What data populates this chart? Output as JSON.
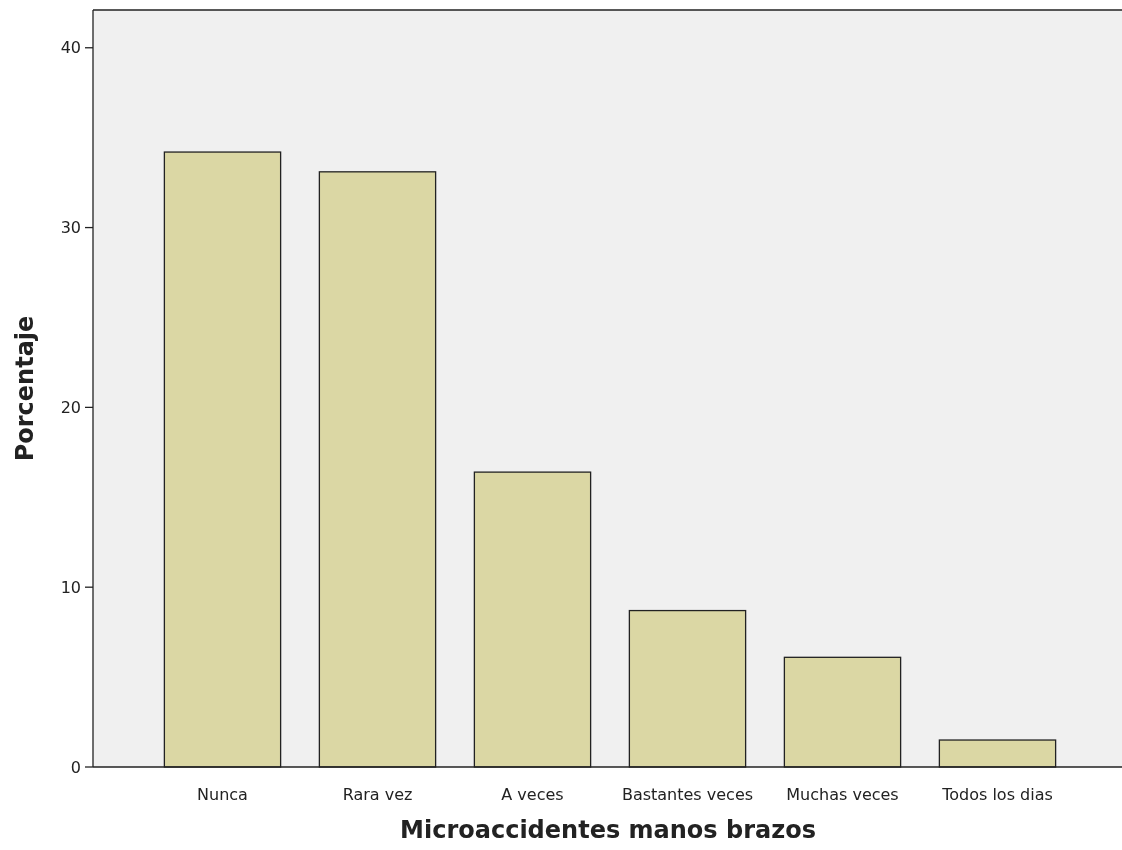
{
  "chart_data": {
    "type": "bar",
    "xlabel": "Microaccidentes manos brazos",
    "ylabel": "Porcentaje",
    "categories": [
      "Nunca",
      "Rara vez",
      "A veces",
      "Bastantes veces",
      "Muchas veces",
      "Todos los dias"
    ],
    "values": [
      34.2,
      33.1,
      16.4,
      8.7,
      6.1,
      1.5
    ],
    "color": "#dbd7a4",
    "ylim": [
      0,
      42.1
    ],
    "yticks": [
      0,
      10,
      20,
      30,
      40
    ],
    "grid": false
  }
}
